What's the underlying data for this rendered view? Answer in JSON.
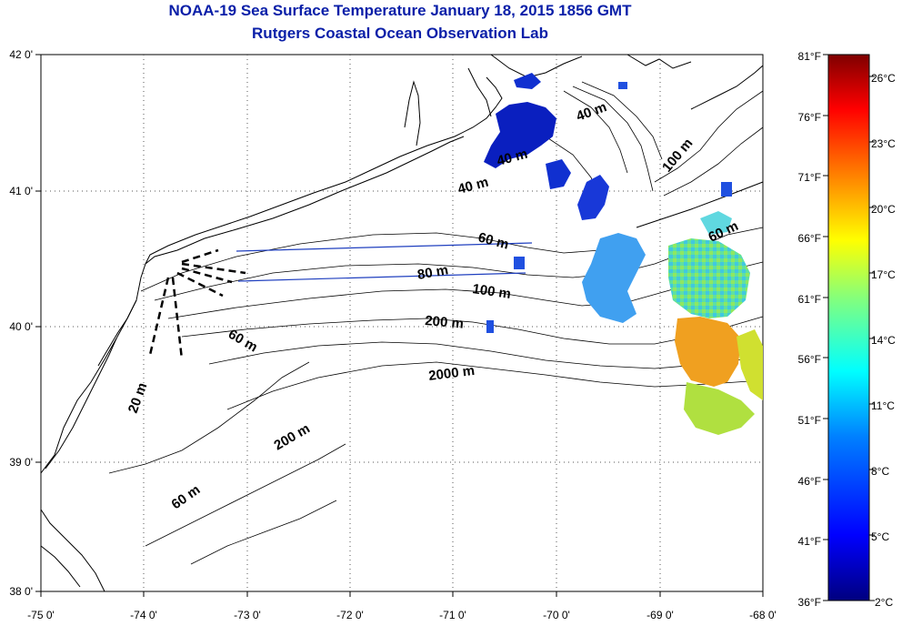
{
  "title": {
    "line1": "NOAA-19 Sea Surface Temperature January 18, 2015 1856 GMT",
    "line2": "Rutgers Coastal Ocean Observation Lab"
  },
  "axes": {
    "longitude_ticks": [
      "-75 0'",
      "-74 0'",
      "-73 0'",
      "-72 0'",
      "-71 0'",
      "-70 0'",
      "-69 0'",
      "-68 0'"
    ],
    "latitude_ticks": [
      "42 0'",
      "41 0'",
      "40 0'",
      "39 0'",
      "38 0'"
    ]
  },
  "contour_labels": {
    "m20": "20 m",
    "m40a": "40 m",
    "m40b": "40 m",
    "m40c": "40 m",
    "m60a": "60 m",
    "m60b": "60 m",
    "m60c": "60 m",
    "m60d": "60 m",
    "m80": "80 m",
    "m100a": "100 m",
    "m100b": "100 m",
    "m200a": "200 m",
    "m200b": "200 m",
    "m2000": "2000 m"
  },
  "colorbar": {
    "fahrenheit": [
      "81°F",
      "76°F",
      "71°F",
      "66°F",
      "61°F",
      "56°F",
      "51°F",
      "46°F",
      "41°F",
      "36°F"
    ],
    "celsius": [
      "26°C",
      "23°C",
      "20°C",
      "17°C",
      "14°C",
      "11°C",
      "8°C",
      "5°C",
      "2°C"
    ],
    "gradient_colors": [
      "#00007f",
      "#0000ff",
      "#0080ff",
      "#00ffff",
      "#80ff80",
      "#ffff00",
      "#ff8000",
      "#ff0000",
      "#7f0000"
    ]
  },
  "colors": {
    "title": "#0a1fa8",
    "coastline": "#000000",
    "transect": "#1f3fbf"
  }
}
